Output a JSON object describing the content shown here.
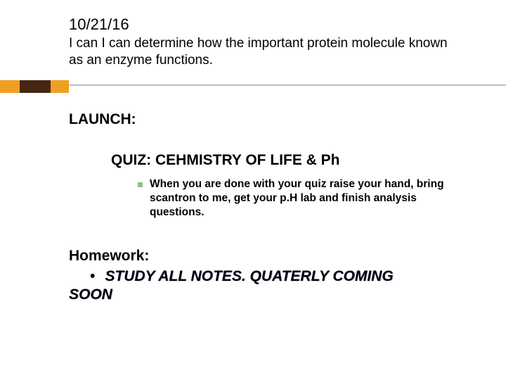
{
  "title": {
    "date": "10/21/16",
    "text": "I can I can determine how the important protein molecule known as an enzyme functions."
  },
  "decor": {
    "rule_color": "#bfbfbf",
    "orange": "#f0a020",
    "purple": "#4b3d8f"
  },
  "body": {
    "launch_label": "LAUNCH:",
    "quiz_line": "QUIZ: CEHMISTRY OF LIFE & Ph",
    "quiz_bullet": {
      "bullet_color": "#8fbf8f",
      "text": "When you are done with your quiz raise your hand, bring scantron to me, get your p.H lab and finish analysis questions."
    },
    "homework_label": "Homework:",
    "homework_item_line1": "STUDY ALL NOTES.  QUATERLY COMING",
    "homework_item_line2": "SOON"
  }
}
